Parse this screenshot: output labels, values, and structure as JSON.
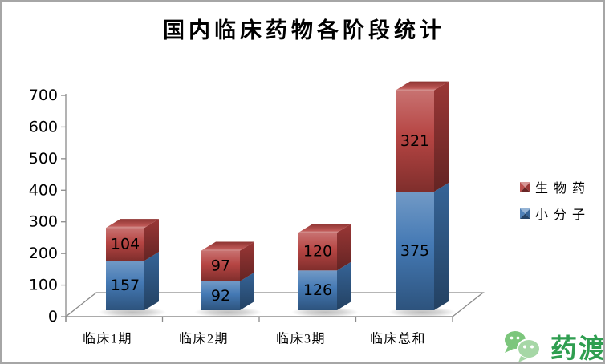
{
  "window": {
    "background": "#ffffff",
    "border_color": "#a6a6a6"
  },
  "title": "国内临床药物各阶段统计",
  "chart_data": {
    "type": "bar",
    "stacked": true,
    "effect_3d": true,
    "title": "国内临床药物各阶段统计",
    "categories": [
      "临床1期",
      "临床2期",
      "临床3期",
      "临床总和"
    ],
    "series": [
      {
        "name": "小分子",
        "color": "#4076b2",
        "values": [
          157,
          92,
          126,
          375
        ]
      },
      {
        "name": "生物药",
        "color": "#b5413f",
        "values": [
          104,
          97,
          120,
          321
        ]
      }
    ],
    "value_labels_shown": true,
    "xlabel": "",
    "ylabel": "",
    "ylim": [
      0,
      700
    ],
    "ytick_step": 100,
    "gridlines": false,
    "legend_position": "right",
    "axis_color": "#8a8a8a",
    "label_color": "#000000"
  },
  "legend": {
    "items": [
      {
        "label": "生物药",
        "color": "#b5413f"
      },
      {
        "label": "小分子",
        "color": "#4076b2"
      }
    ]
  },
  "logo": {
    "icon": "wechat-icon",
    "text": "药渡",
    "text_color": "#2f9e50",
    "bubble_back_color": "#7cc67c",
    "bubble_front_color": "#a6d7a6",
    "bubble_eye_color": "#ffffff"
  }
}
